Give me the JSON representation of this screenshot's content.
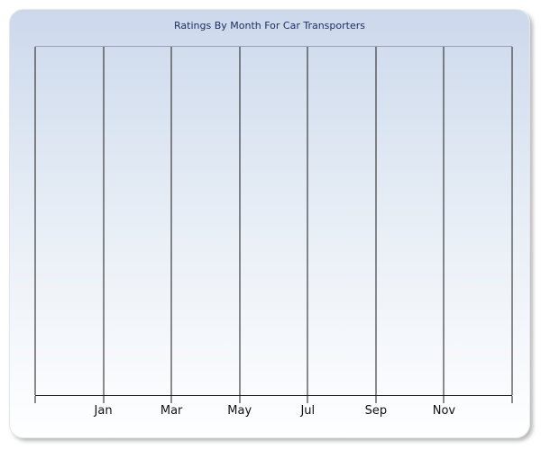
{
  "page": {
    "background": "#ffffff"
  },
  "chart_data": {
    "type": "line",
    "title": "Ratings By Month For Car Transporters",
    "categories": [
      "Jan",
      "Mar",
      "May",
      "Jul",
      "Sep",
      "Nov"
    ],
    "series": [],
    "xlabel": "",
    "ylabel": "",
    "y_axis_tick_labels": "none",
    "legend": "none",
    "grid": "vertical-only",
    "gridline_count": 8,
    "plot_empty": true
  },
  "colors": {
    "title": "#1c3062",
    "gridline": "#1a1a1a",
    "axis": "#1a1a1a",
    "tick_label": "#111111",
    "plot_top_border": "#9aa3b2",
    "panel_gradient_top": "#ccd8eb",
    "panel_gradient_bottom": "#feffff"
  }
}
